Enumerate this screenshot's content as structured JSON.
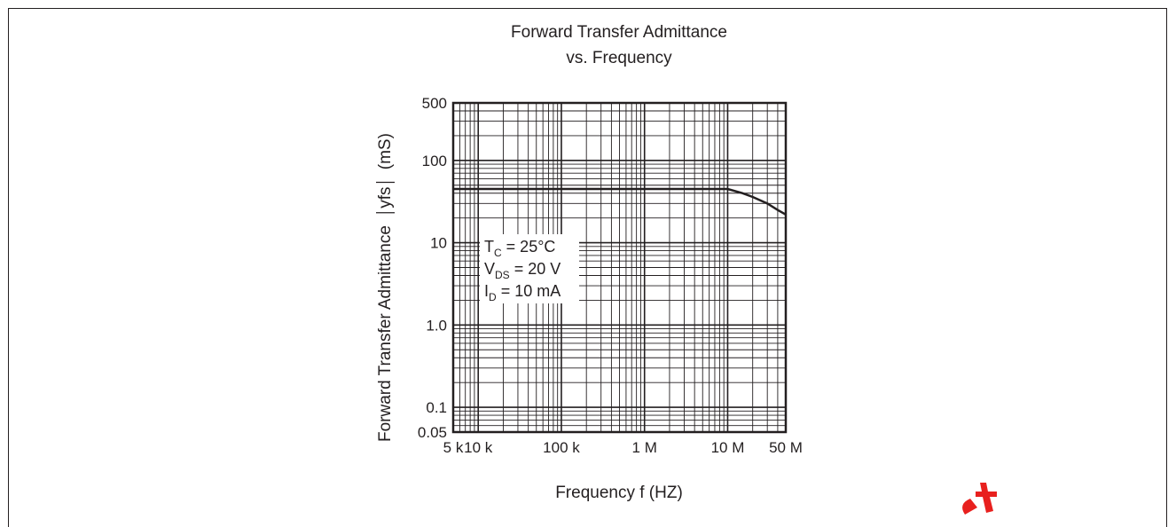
{
  "chart_data": {
    "type": "line",
    "title_lines": [
      "Forward Transfer Admittance",
      "vs. Frequency"
    ],
    "xlabel": "Frequency  f  (HZ)",
    "ylabel_left": "Forward Transfer Admittance",
    "ylabel_symbol": "yfs",
    "ylabel_unit": "(mS)",
    "x_scale": "log",
    "y_scale": "log",
    "xlim": [
      5000,
      50000000
    ],
    "ylim": [
      0.05,
      500
    ],
    "x_ticks": [
      {
        "value": 5000,
        "label": "5 k"
      },
      {
        "value": 10000,
        "label": "10 k"
      },
      {
        "value": 100000,
        "label": "100 k"
      },
      {
        "value": 1000000,
        "label": "1 M"
      },
      {
        "value": 10000000,
        "label": "10 M"
      },
      {
        "value": 50000000,
        "label": "50 M"
      }
    ],
    "y_ticks": [
      {
        "value": 0.05,
        "label": "0.05"
      },
      {
        "value": 0.1,
        "label": "0.1"
      },
      {
        "value": 1,
        "label": "1.0"
      },
      {
        "value": 10,
        "label": "10"
      },
      {
        "value": 100,
        "label": "100"
      },
      {
        "value": 500,
        "label": "500"
      }
    ],
    "grid": true,
    "series": [
      {
        "x": [
          5000,
          10000,
          100000,
          1000000,
          10000000,
          15000000,
          20000000,
          30000000,
          40000000,
          50000000
        ],
        "y": [
          45,
          45,
          45,
          45,
          45,
          40,
          36,
          30,
          25,
          22
        ]
      }
    ],
    "conditions": [
      {
        "main": "T",
        "sub": "C",
        "rest": " = 25°C"
      },
      {
        "main": "V",
        "sub": "DS",
        "rest": " = 20 V"
      },
      {
        "main": "I",
        "sub": "D",
        "rest": " = 10 mA"
      }
    ]
  }
}
